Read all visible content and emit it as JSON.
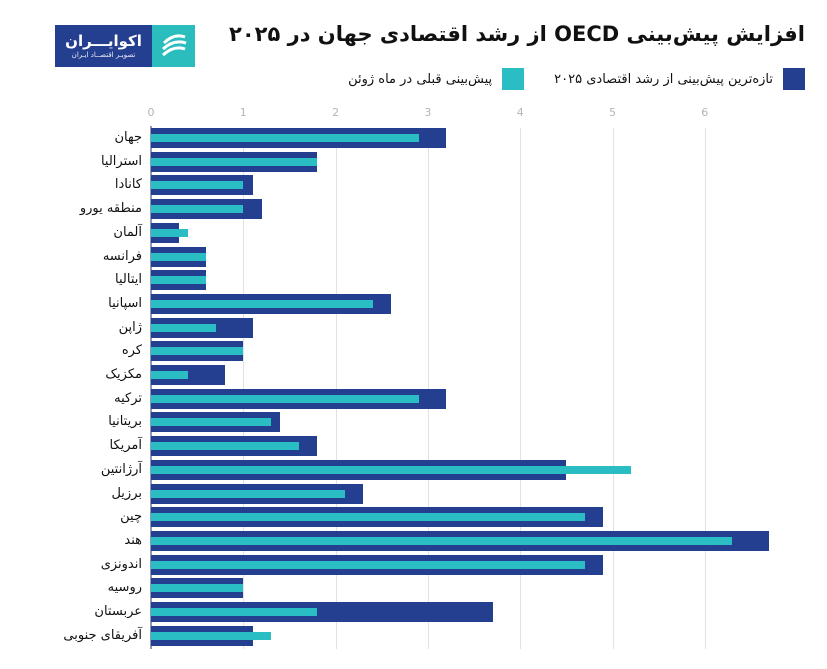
{
  "header": {
    "title": "افزایش پیش‌بینی OECD از رشد اقتصادی جهان در ۲۰۲۵",
    "logo": {
      "main": "اکوایـــران",
      "sub": "تصویـر اقتصــاد ایـران",
      "icon": "ecoiran-swirl-icon"
    }
  },
  "legend": [
    {
      "label": "تازه‌ترین پیش‌بینی از رشد اقتصادی ۲۰۲۵",
      "color": "#243f8f"
    },
    {
      "label": "پیش‌بینی قبلی در ماه ژوئن",
      "color": "#2bbdc4"
    }
  ],
  "chart_data": {
    "type": "bar",
    "orientation": "horizontal",
    "title": "افزایش پیش‌بینی OECD از رشد اقتصادی جهان در ۲۰۲۵",
    "xlabel": "",
    "ylabel": "",
    "xlim": [
      0,
      6.8
    ],
    "xticks": [
      "0",
      "1",
      "2",
      "3",
      "4",
      "5",
      "6"
    ],
    "grid": true,
    "legend_position": "top",
    "categories": [
      "جهان",
      "استرالیا",
      "کانادا",
      "منطقه یورو",
      "آلمان",
      "فرانسه",
      "ایتالیا",
      "اسپانیا",
      "ژاپن",
      "کره",
      "مکزیک",
      "ترکیه",
      "بریتانیا",
      "آمریکا",
      "آرژانتین",
      "برزیل",
      "چین",
      "هند",
      "اندونزی",
      "روسیه",
      "عربستان",
      "آفریقای جنوبی"
    ],
    "series": [
      {
        "name": "تازه‌ترین پیش‌بینی از رشد اقتصادی ۲۰۲۵",
        "color": "#243f8f",
        "values": [
          3.2,
          1.8,
          1.1,
          1.2,
          0.3,
          0.6,
          0.6,
          2.6,
          1.1,
          1.0,
          0.8,
          3.2,
          1.4,
          1.8,
          4.5,
          2.3,
          4.9,
          6.7,
          4.9,
          1.0,
          3.7,
          1.1
        ]
      },
      {
        "name": "پیش‌بینی قبلی در ماه ژوئن",
        "color": "#2bbdc4",
        "values": [
          2.9,
          1.8,
          1.0,
          1.0,
          0.4,
          0.6,
          0.6,
          2.4,
          0.7,
          1.0,
          0.4,
          2.9,
          1.3,
          1.6,
          5.2,
          2.1,
          4.7,
          6.3,
          4.7,
          1.0,
          1.8,
          1.3
        ]
      }
    ]
  }
}
